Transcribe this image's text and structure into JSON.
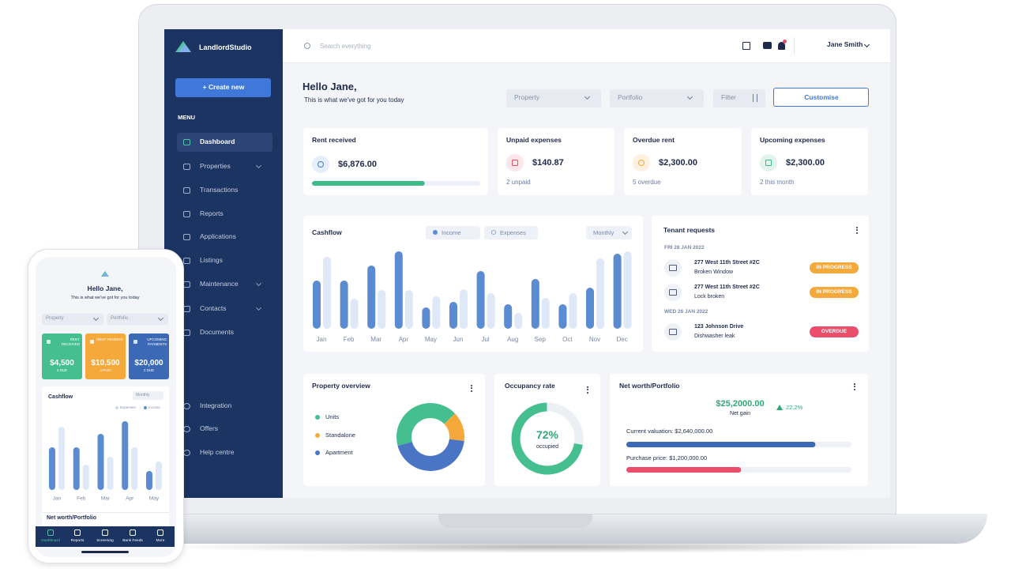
{
  "sidebar": {
    "brand": "LandlordStudio",
    "create_button": "+ Create new",
    "menu_heading": "MENU",
    "menu": [
      "Dashboard",
      "Properties",
      "Transactions",
      "Reports",
      "Applications",
      "Listings",
      "Maintenance",
      "Contacts",
      "Documents"
    ],
    "footer_menu": [
      "Integration",
      "Offers",
      "Help centre"
    ]
  },
  "topbar": {
    "search_placeholder": "Search everything",
    "user": "Jane Smith"
  },
  "greeting": {
    "title": "Hello Jane,",
    "subtitle": "This is what we've got for you today"
  },
  "filters": [
    "Property",
    "Portfolio",
    "Filter"
  ],
  "customise_button": "Customise",
  "stat_cards": [
    {
      "label": "Rent received",
      "value": "$6,876.00",
      "progress": 67,
      "color": "#3dbb8a"
    },
    {
      "label": "Unpaid expenses",
      "value": "$140.87",
      "note": "2 unpaid"
    },
    {
      "label": "Overdue rent",
      "value": "$2,300.00",
      "note": "5 overdue"
    },
    {
      "label": "Upcoming expenses",
      "value": "$2,300.00",
      "note": "2 this month"
    }
  ],
  "cashflow": {
    "type": "bar",
    "title": "Cashflow",
    "period": "Monthly",
    "categories": [
      "Jan",
      "Feb",
      "Mar",
      "Apr",
      "May",
      "Jun",
      "Jul",
      "Aug",
      "Sep",
      "Oct",
      "Nov",
      "Dec"
    ],
    "series": [
      {
        "name": "Income",
        "color": "#5b8bd0",
        "values": [
          61,
          61,
          80,
          98,
          27,
          34,
          73,
          31,
          63,
          31,
          52,
          95
        ]
      },
      {
        "name": "Expenses",
        "color": "#dfe8f6",
        "values": [
          91,
          38,
          49,
          49,
          41,
          50,
          45,
          20,
          39,
          45,
          89,
          98
        ]
      }
    ]
  },
  "tenant_requests": {
    "title": "Tenant requests",
    "groups": [
      {
        "date": "FRI 28 JAN 2022",
        "requests": [
          {
            "address": "277 West 11th Street #2C",
            "issue": "Broken Window",
            "status": "IN PROGRESS",
            "color": "#f5a93a"
          },
          {
            "address": "277 West 11th Street #2C",
            "issue": "Lock broken",
            "status": "IN PROGRESS",
            "color": "#f5a93a"
          }
        ]
      },
      {
        "date": "WED 26 JAN 2022",
        "requests": [
          {
            "address": "123 Johnson Drive",
            "issue": "Dishwasher leak",
            "status": "OVERDUE",
            "color": "#ea4e6b"
          }
        ]
      }
    ]
  },
  "property_overview": {
    "type": "pie",
    "title": "Property overview",
    "categories": [
      "Units",
      "Standalone",
      "Apartment"
    ],
    "values": [
      42,
      14,
      44
    ],
    "colors": [
      "#45bf8f",
      "#f5a93a",
      "#4a74c4"
    ]
  },
  "occupancy": {
    "title": "Occupancy rate",
    "value": 72,
    "value_label": "72%",
    "caption": "occupied",
    "color": "#45bf8f"
  },
  "net_worth": {
    "title": "Net worth/Portfolio",
    "value": "$25,2000.00",
    "caption": "Net gain",
    "change": "22.2%",
    "bars": [
      {
        "label": "Current valuation: $2,640,000.00",
        "value": 84,
        "color": "#3b69b6"
      },
      {
        "label": "Purchase price: $1,200,000.00",
        "value": 51,
        "color": "#ea4e6b"
      }
    ]
  },
  "phone": {
    "greeting": "Hello Jane,",
    "subtitle": "This is what we've got for you today",
    "filters": [
      "Property",
      "Portfolio"
    ],
    "cards": [
      {
        "label": "RENT RECEIVED",
        "value": "$4,500",
        "note": "3 DUE",
        "color": "#45bf8f"
      },
      {
        "label": "RENT PENDING",
        "value": "$10,500",
        "note": "4 PAID",
        "color": "#f5a93a"
      },
      {
        "label": "UPCOMING PAYMENTS",
        "value": "$20,000",
        "note": "2 DUE",
        "color": "#3b69b6"
      }
    ],
    "cashflow": {
      "type": "bar",
      "title": "Cashflow",
      "period": "Monthly",
      "categories": [
        "Jan",
        "Feb",
        "Mar",
        "Apr",
        "May"
      ],
      "series": [
        {
          "name": "Income",
          "color": "#5b8bd0",
          "values": [
            54,
            54,
            71,
            87,
            24
          ]
        },
        {
          "name": "Expenses",
          "color": "#dfe8f6",
          "values": [
            80,
            32,
            42,
            54,
            36
          ]
        }
      ]
    },
    "net_worth_title": "Net worth/Portfolio",
    "nav": [
      "Dashboard",
      "Reports",
      "Screening",
      "Bank Feeds",
      "More"
    ]
  }
}
